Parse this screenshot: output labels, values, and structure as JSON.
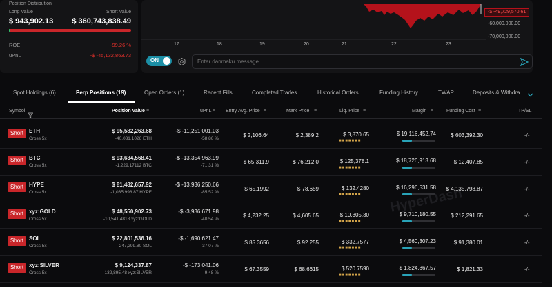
{
  "position_panel": {
    "title": "Position Distribution",
    "long_label": "Long Value",
    "short_label": "Short Value",
    "long_value": "$ 943,902.13",
    "short_value": "$ 360,743,838.49",
    "short_ratio": 0.997,
    "roe_label": "ROE",
    "roe_value": "-99.26 %",
    "upnl_label": "uPnL",
    "upnl_value": "-$ -45,132,863.73"
  },
  "chart": {
    "price_tag": "-$ -49,729,570.61",
    "y_ticks": [
      "-60,000,000.00",
      "-70,000,000.00"
    ],
    "x_ticks": [
      "17",
      "18",
      "19",
      "20",
      "21",
      "22",
      "23"
    ],
    "area_color": "#b5121b"
  },
  "danmaku": {
    "toggle_label": "ON",
    "placeholder": "Enter danmaku message"
  },
  "tabs": [
    "Spot Holdings (6)",
    "Perp Positions (19)",
    "Open Orders (1)",
    "Recent Fills",
    "Completed Trades",
    "Historical Orders",
    "Funding History",
    "TWAP",
    "Deposits & Withdra"
  ],
  "headers": {
    "symbol": "Symbol",
    "position_value": "Position Value",
    "upnl": "uPnL",
    "entry": "Entry Avg. Price",
    "mark": "Mark Price",
    "liq": "Liq. Price",
    "margin": "Margin",
    "funding": "Funding Cost",
    "tpsl": "TP/SL"
  },
  "rows": [
    {
      "side": "Short",
      "symbol": "ETH",
      "leverage": "Cross 5x",
      "value": "$ 95,582,263.68",
      "size": "-40,031.1026 ETH",
      "upnl": "-$ -11,251,001.03",
      "upnl_pct": "-58.86 %",
      "entry": "$ 2,106.64",
      "mark": "$ 2,389.2",
      "liq": "$ 3,870.65",
      "margin": "$ 19,116,452.74",
      "margin_ratio": 0.3,
      "funding": "$ 603,392.30",
      "tpsl": "-/-"
    },
    {
      "side": "Short",
      "symbol": "BTC",
      "leverage": "Cross 5x",
      "value": "$ 93,634,568.41",
      "size": "-1,229.17112 BTC",
      "upnl": "-$ -13,354,963.99",
      "upnl_pct": "-71.31 %",
      "entry": "$ 65,311.9",
      "mark": "$ 76,212.0",
      "liq": "$ 125,378.1",
      "margin": "$ 18,726,913.68",
      "margin_ratio": 0.3,
      "funding": "$ 12,407.85",
      "tpsl": "-/-"
    },
    {
      "side": "Short",
      "symbol": "HYPE",
      "leverage": "Cross 5x",
      "value": "$ 81,482,657.92",
      "size": "-1,035,998.87 HYPE",
      "upnl": "-$ -13,936,250.66",
      "upnl_pct": "-85.52 %",
      "entry": "$ 65.1992",
      "mark": "$ 78.659",
      "liq": "$ 132.4280",
      "margin": "$ 16,296,531.58",
      "margin_ratio": 0.3,
      "funding": "$ 4,135,798.87",
      "tpsl": "-/-"
    },
    {
      "side": "Short",
      "symbol": "xyz:GOLD",
      "leverage": "Cross 5x",
      "value": "$ 48,550,902.73",
      "size": "-10,541.4818 xyz:GOLD",
      "upnl": "-$ -3,936,671.98",
      "upnl_pct": "-40.54 %",
      "entry": "$ 4,232.25",
      "mark": "$ 4,605.65",
      "liq": "$ 10,305.30",
      "margin": "$ 9,710,180.55",
      "margin_ratio": 0.3,
      "funding": "$ 212,291.65",
      "tpsl": "-/-"
    },
    {
      "side": "Short",
      "symbol": "SOL",
      "leverage": "Cross 5x",
      "value": "$ 22,801,536.16",
      "size": "-247,299.80 SOL",
      "upnl": "-$ -1,690,621.47",
      "upnl_pct": "-37.07 %",
      "entry": "$ 85.3656",
      "mark": "$ 92.255",
      "liq": "$ 332.7577",
      "margin": "$ 4,560,307.23",
      "margin_ratio": 0.3,
      "funding": "$ 91,380.01",
      "tpsl": "-/-"
    },
    {
      "side": "Short",
      "symbol": "xyz:SILVER",
      "leverage": "Cross 5x",
      "value": "$ 9,124,337.87",
      "size": "-132,895.48 xyz:SILVER",
      "upnl": "-$ -173,041.06",
      "upnl_pct": "-9.48 %",
      "entry": "$ 67.3559",
      "mark": "$ 68.6615",
      "liq": "$ 520.7590",
      "margin": "$ 1,824,867.57",
      "margin_ratio": 0.3,
      "funding": "$ 1,821.33",
      "tpsl": "-/-"
    }
  ],
  "colors": {
    "short_badge": "#c9262a",
    "negative": "#e0302b",
    "positive": "#35c26a",
    "accent": "#29a3b8"
  }
}
